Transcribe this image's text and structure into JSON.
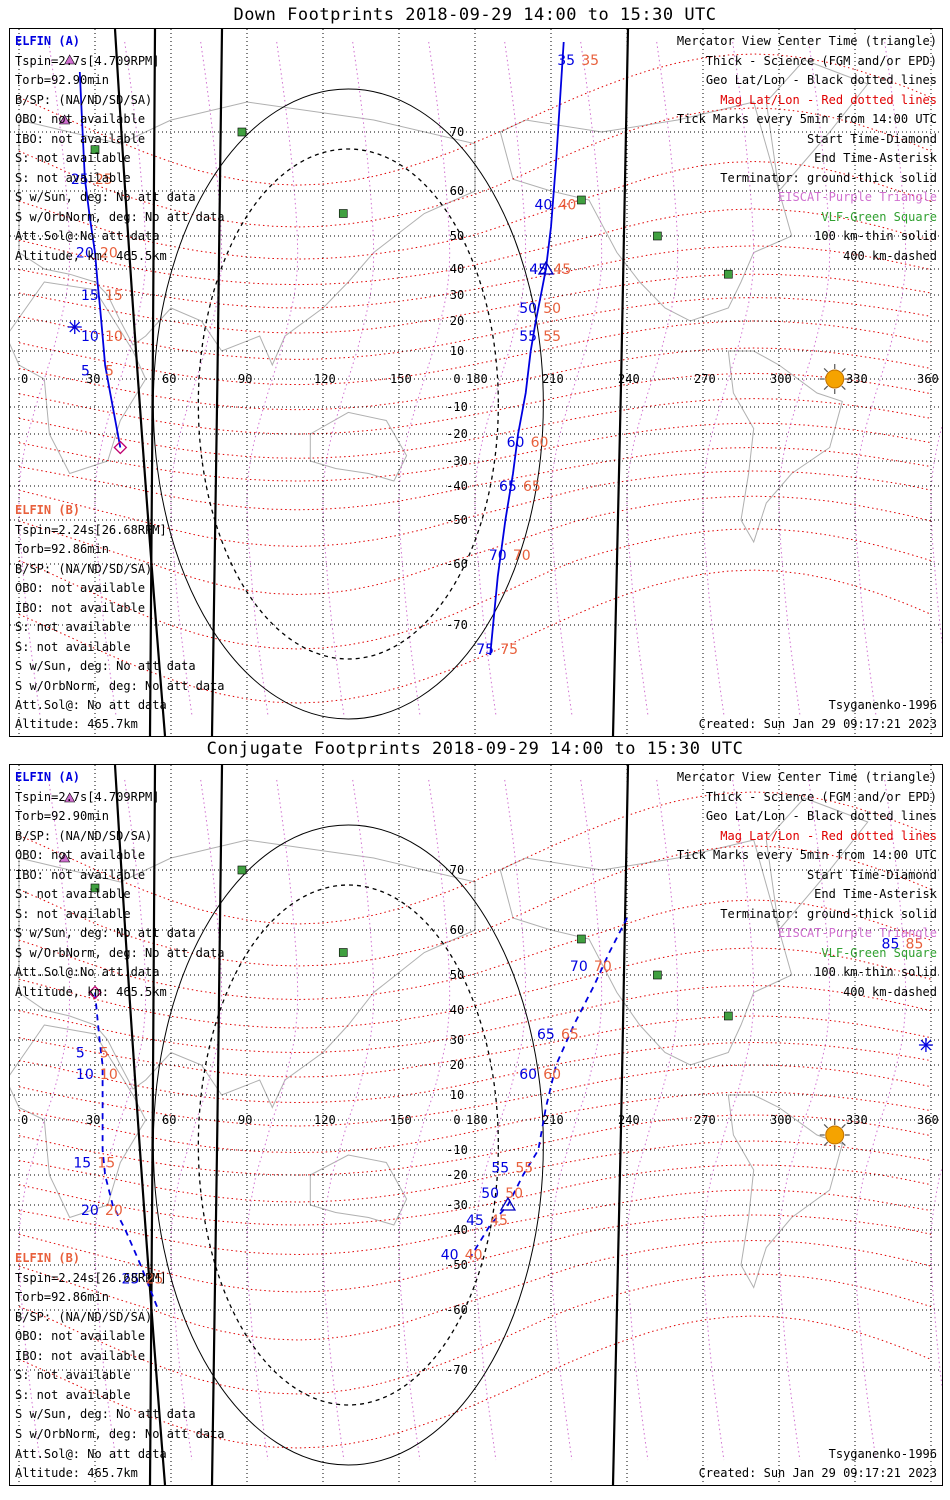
{
  "panels": [
    {
      "id": "down",
      "title": "Down Footprints 2018-09-29 14:00 to 15:30 UTC",
      "satA": {
        "name": "ELFIN (A)",
        "lines": [
          "Tspin=2.7s[4.709RPM]",
          "Torb=92.90min",
          "B/SP: (NA/ND/SD/SA)",
          "OBO: not available",
          "IBO: not available",
          "S: not available",
          "S: not available",
          "S w/Sun, deg: No att data",
          "S w/OrbNorm, deg: No att data",
          "Att.Sol@:No att data",
          "Altitude, km: 465.5km"
        ]
      },
      "satB": {
        "name": "ELFIN (B)",
        "lines": [
          "Tspin=2.24s[26.68RPM]",
          "Torb=92.86min",
          "B/SP: (NA/ND/SD/SA)",
          "OBO: not available",
          "IBO: not available",
          "S: not available",
          "S: not available",
          "S w/Sun, deg: No att data",
          "S w/OrbNorm, deg: No att data"
        ],
        "att": "Att.Sol@: No att data",
        "altitude": "Altitude: 465.7km"
      },
      "legend": [
        {
          "text": "Mercator View Center Time (triangle)",
          "color": "black"
        },
        {
          "text": "Thick - Science (FGM and/or EPD)",
          "color": "black"
        },
        {
          "text": "Geo Lat/Lon - Black dotted lines",
          "color": "black"
        },
        {
          "text": "Mag Lat/Lon - Red dotted lines",
          "color": "red"
        },
        {
          "text": "Tick Marks every 5min from 14:00 UTC",
          "color": "black"
        },
        {
          "text": "Start Time-Diamond",
          "color": "black"
        },
        {
          "text": "End Time-Asterisk",
          "color": "black"
        },
        {
          "text": "Terminator: ground-thick solid",
          "color": "black"
        },
        {
          "text": "EISCAT-Purple Triangle",
          "color": "purple"
        },
        {
          "text": "VLF-Green Square",
          "color": "green"
        },
        {
          "text": "100 km-thin solid",
          "color": "black"
        },
        {
          "text": "400 km-dashed",
          "color": "black"
        }
      ],
      "model": "Tsyganenko-1996",
      "created": "Created: Sun Jan 29 09:17:21 2023"
    },
    {
      "id": "conjugate",
      "title": "Conjugate Footprints 2018-09-29 14:00 to 15:30 UTC",
      "satA": {
        "name": "ELFIN (A)",
        "lines": [
          "Tspin=2.7s[4.709RPM]",
          "Torb=92.90min",
          "B/SP: (NA/ND/SD/SA)",
          "OBO: not available",
          "IBO: not available",
          "S: not available",
          "S: not available",
          "S w/Sun, deg: No att data",
          "S w/OrbNorm, deg: No att data",
          "Att.Sol@:No att data",
          "Altitude, km: 465.5km"
        ]
      },
      "satB": {
        "name": "ELFIN (B)",
        "lines": [
          "Tspin=2.24s[26.68RPM]",
          "Torb=92.86min",
          "B/SP: (NA/ND/SD/SA)",
          "OBO: not available",
          "IBO: not available",
          "S: not available",
          "S: not available",
          "S w/Sun, deg: No att data",
          "S w/OrbNorm, deg: No att data"
        ],
        "att": "Att.Sol@: No att data",
        "altitude": "Altitude: 465.7km"
      },
      "legend": [
        {
          "text": "Mercator View Center Time (triangle)",
          "color": "black"
        },
        {
          "text": "Thick - Science (FGM and/or EPD)",
          "color": "black"
        },
        {
          "text": "Geo Lat/Lon - Black dotted lines",
          "color": "black"
        },
        {
          "text": "Mag Lat/Lon - Red dotted lines",
          "color": "red"
        },
        {
          "text": "Tick Marks every 5min from 14:00 UTC",
          "color": "black"
        },
        {
          "text": "Start Time-Diamond",
          "color": "black"
        },
        {
          "text": "End Time-Asterisk",
          "color": "black"
        },
        {
          "text": "Terminator: ground-thick solid",
          "color": "black"
        },
        {
          "text": "EISCAT-Purple Triangle",
          "color": "purple"
        },
        {
          "text": "VLF-Green Square",
          "color": "green"
        },
        {
          "text": "100 km-thin solid",
          "color": "black"
        },
        {
          "text": "400 km-dashed",
          "color": "black"
        }
      ],
      "model": "Tsyganenko-1996",
      "created": "Created: Sun Jan 29 09:17:21 2023"
    }
  ],
  "map": {
    "lon_ticks": [
      "0",
      "30",
      "60",
      "90",
      "120",
      "150",
      "180",
      "210",
      "240",
      "270",
      "300",
      "330",
      "360"
    ],
    "lat_ticks": [
      "70",
      "60",
      "50",
      "40",
      "30",
      "20",
      "10",
      "0",
      "-10",
      "-20",
      "-30",
      "-40",
      "-50",
      "-60",
      "-70"
    ],
    "colors": {
      "satA": "#0000e0",
      "satB": "#e8603c",
      "geo_grid": "#000000",
      "mag_grid": "#e00000",
      "eiscat": "#d070d0",
      "vlf": "#40a040",
      "sun": "#f5a300",
      "coast": "#b0b0b0"
    }
  },
  "chart_data": [
    {
      "type": "map",
      "panel": "Down Footprints",
      "lon_range": [
        0,
        360
      ],
      "lat_range": [
        -80,
        80
      ],
      "series": [
        {
          "name": "ELFIN (A)",
          "points": [
            [
              24,
              80
            ],
            [
              25,
              71
            ],
            [
              26,
              62
            ],
            [
              28,
              54
            ],
            [
              30,
              45
            ],
            [
              31,
              35
            ],
            [
              32,
              25
            ],
            [
              33,
              15
            ],
            [
              34,
              5
            ],
            [
              36,
              -5
            ],
            [
              38,
              -15
            ],
            [
              40,
              -25
            ]
          ],
          "tick_labels": [
            "25",
            "20",
            "15",
            "10",
            "5"
          ],
          "tick_lon_lat": [
            [
              26,
              62
            ],
            [
              28,
              45
            ],
            [
              30,
              30
            ],
            [
              30,
              15
            ],
            [
              30,
              3
            ]
          ]
        },
        {
          "name": "ELFIN (B)",
          "points": [
            [
              215,
              85
            ],
            [
              212,
              65
            ],
            [
              210,
              52
            ],
            [
              208,
              40
            ],
            [
              206,
              30
            ],
            [
              204,
              20
            ],
            [
              202,
              10
            ],
            [
              200,
              -5
            ],
            [
              197,
              -20
            ],
            [
              195,
              -35
            ],
            [
              192,
              -50
            ],
            [
              189,
              -62
            ],
            [
              186,
              -75
            ]
          ],
          "tick_labels": [
            "35",
            "40",
            "45",
            "50",
            "55",
            "60",
            "65",
            "70",
            "75"
          ],
          "tick_lon_lat": [
            [
              218,
              82
            ],
            [
              209,
              57
            ],
            [
              207,
              40
            ],
            [
              203,
              25
            ],
            [
              203,
              15
            ],
            [
              198,
              -23
            ],
            [
              195,
              -40
            ],
            [
              191,
              -58
            ],
            [
              186,
              -74
            ]
          ]
        }
      ],
      "sun": {
        "lon": 322,
        "lat": 0
      }
    },
    {
      "type": "map",
      "panel": "Conjugate Footprints",
      "lon_range": [
        0,
        360
      ],
      "lat_range": [
        -80,
        80
      ],
      "series": [
        {
          "name": "ELFIN (A)",
          "points": [
            [
              30,
              45
            ],
            [
              31,
              37
            ],
            [
              32,
              28
            ],
            [
              33,
              20
            ],
            [
              33,
              10
            ],
            [
              33,
              0
            ],
            [
              33,
              -10
            ],
            [
              34,
              -20
            ],
            [
              37,
              -30
            ],
            [
              42,
              -40
            ],
            [
              48,
              -50
            ],
            [
              55,
              -60
            ]
          ],
          "tick_labels": [
            "5",
            "10",
            "15",
            "20",
            "25"
          ],
          "tick_lon_lat": [
            [
              28,
              25
            ],
            [
              28,
              17
            ],
            [
              27,
              -15
            ],
            [
              30,
              -32
            ],
            [
              46,
              -53
            ]
          ]
        },
        {
          "name": "ELFIN (B)",
          "points": [
            [
              240,
              62
            ],
            [
              233,
              55
            ],
            [
              227,
              47
            ],
            [
              219,
              35
            ],
            [
              212,
              20
            ],
            [
              208,
              5
            ],
            [
              205,
              -10
            ],
            [
              199,
              -20
            ],
            [
              193,
              -30
            ],
            [
              186,
              -38
            ],
            [
              178,
              -48
            ]
          ],
          "tick_labels": [
            "85",
            "70",
            "65",
            "60",
            "55",
            "50",
            "45",
            "40"
          ],
          "tick_lon_lat": [
            [
              346,
              57
            ],
            [
              223,
              52
            ],
            [
              210,
              32
            ],
            [
              203,
              17
            ],
            [
              192,
              -17
            ],
            [
              188,
              -26
            ],
            [
              182,
              -36
            ],
            [
              172,
              -47
            ]
          ]
        }
      ],
      "sun": {
        "lon": 322,
        "lat": -5
      }
    }
  ]
}
